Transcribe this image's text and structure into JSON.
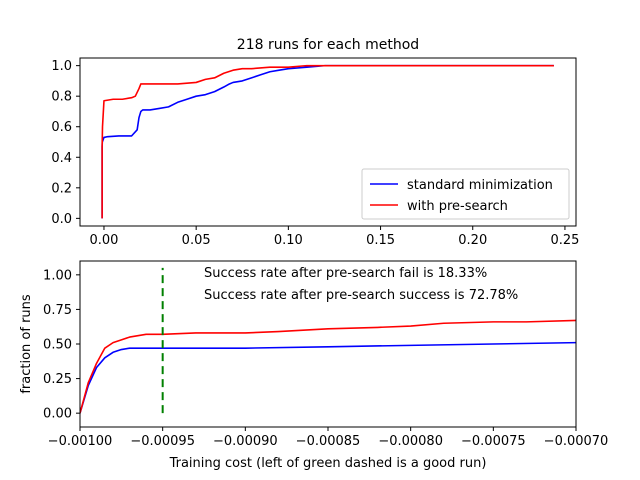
{
  "chart_data": [
    {
      "type": "line",
      "title": "218 runs for each method",
      "xlabel": "",
      "ylabel": "",
      "xlim": [
        -0.013,
        0.256
      ],
      "ylim": [
        -0.05,
        1.05
      ],
      "xticks": [
        0.0,
        0.05,
        0.1,
        0.15,
        0.2,
        0.25
      ],
      "xtick_labels": [
        "0.00",
        "0.05",
        "0.10",
        "0.15",
        "0.20",
        "0.25"
      ],
      "yticks": [
        0.0,
        0.2,
        0.4,
        0.6,
        0.8,
        1.0
      ],
      "ytick_labels": [
        "0.0",
        "0.2",
        "0.4",
        "0.6",
        "0.8",
        "1.0"
      ],
      "grid": false,
      "legend_position": "bottom-right",
      "series": [
        {
          "name": "standard minimization",
          "color": "#0000ff",
          "x": [
            -0.001,
            -0.001,
            -0.0009,
            0.0,
            0.002,
            0.008,
            0.015,
            0.018,
            0.019,
            0.02,
            0.021,
            0.025,
            0.03,
            0.035,
            0.04,
            0.045,
            0.05,
            0.055,
            0.06,
            0.065,
            0.068,
            0.07,
            0.075,
            0.08,
            0.085,
            0.09,
            0.095,
            0.1,
            0.11,
            0.12,
            0.15,
            0.2,
            0.244
          ],
          "y": [
            0.0,
            0.47,
            0.5,
            0.53,
            0.535,
            0.54,
            0.54,
            0.58,
            0.66,
            0.7,
            0.71,
            0.71,
            0.72,
            0.73,
            0.76,
            0.78,
            0.8,
            0.81,
            0.83,
            0.86,
            0.88,
            0.89,
            0.9,
            0.92,
            0.94,
            0.96,
            0.97,
            0.98,
            0.99,
            1.0,
            1.0,
            1.0,
            1.0
          ]
        },
        {
          "name": "with pre-search",
          "color": "#ff0000",
          "x": [
            -0.001,
            -0.001,
            -0.0008,
            0.0,
            0.005,
            0.01,
            0.015,
            0.017,
            0.019,
            0.02,
            0.03,
            0.04,
            0.05,
            0.055,
            0.06,
            0.065,
            0.07,
            0.075,
            0.08,
            0.09,
            0.1,
            0.11,
            0.12,
            0.15,
            0.2,
            0.244
          ],
          "y": [
            0.0,
            0.47,
            0.6,
            0.77,
            0.78,
            0.78,
            0.79,
            0.8,
            0.85,
            0.88,
            0.88,
            0.88,
            0.89,
            0.91,
            0.92,
            0.95,
            0.97,
            0.98,
            0.98,
            0.99,
            0.99,
            1.0,
            1.0,
            1.0,
            1.0,
            1.0
          ]
        }
      ]
    },
    {
      "type": "line",
      "title": "",
      "xlabel": "Training cost (left of green dashed is a good run)",
      "ylabel": "fraction of runs",
      "xlim": [
        -0.001,
        -0.0007
      ],
      "ylim": [
        -0.1,
        1.1
      ],
      "xticks": [
        -0.001,
        -0.00095,
        -0.0009,
        -0.00085,
        -0.0008,
        -0.00075,
        -0.0007
      ],
      "xtick_labels": [
        "−0.00100",
        "−0.00095",
        "−0.00090",
        "−0.00085",
        "−0.00080",
        "−0.00075",
        "−0.00070"
      ],
      "yticks": [
        0.0,
        0.25,
        0.5,
        0.75,
        1.0
      ],
      "ytick_labels": [
        "0.00",
        "0.25",
        "0.50",
        "0.75",
        "1.00"
      ],
      "grid": false,
      "threshold": {
        "x": -0.00095,
        "y_range": [
          0.0,
          1.05
        ],
        "color": "#008000",
        "style": "dashed"
      },
      "annotations": [
        "Success rate after pre-search fail is 18.33%",
        "Success rate after pre-search success is 72.78%"
      ],
      "series": [
        {
          "name": "standard minimization",
          "color": "#0000ff",
          "x": [
            -0.001,
            -0.000995,
            -0.00099,
            -0.000985,
            -0.00098,
            -0.000975,
            -0.00097,
            -0.000965,
            -0.00096,
            -0.00095,
            -0.0009,
            -0.00085,
            -0.0008,
            -0.00075,
            -0.0007
          ],
          "y": [
            0.0,
            0.2,
            0.33,
            0.4,
            0.44,
            0.46,
            0.47,
            0.47,
            0.47,
            0.47,
            0.47,
            0.48,
            0.49,
            0.5,
            0.51
          ]
        },
        {
          "name": "with pre-search",
          "color": "#ff0000",
          "x": [
            -0.001,
            -0.000995,
            -0.00099,
            -0.000985,
            -0.00098,
            -0.000975,
            -0.00097,
            -0.000965,
            -0.00096,
            -0.00095,
            -0.00093,
            -0.0009,
            -0.00088,
            -0.00085,
            -0.00082,
            -0.0008,
            -0.00078,
            -0.00075,
            -0.00073,
            -0.0007
          ],
          "y": [
            0.0,
            0.22,
            0.36,
            0.47,
            0.51,
            0.53,
            0.55,
            0.56,
            0.57,
            0.57,
            0.58,
            0.58,
            0.59,
            0.61,
            0.62,
            0.63,
            0.65,
            0.66,
            0.66,
            0.67
          ]
        }
      ]
    }
  ]
}
